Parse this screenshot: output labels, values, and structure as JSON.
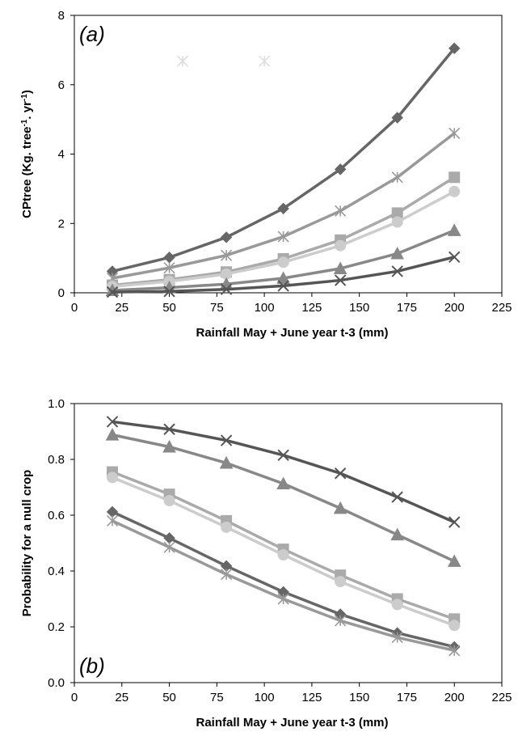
{
  "chart_data": [
    {
      "type": "line",
      "panel_label": "(a)",
      "xlabel": "Rainfall May + June year t-3 (mm)",
      "ylabel_parts": [
        "CPtree (Kg. tree",
        "-1",
        ". yr",
        "-1",
        ")"
      ],
      "xlim": [
        0,
        225
      ],
      "ylim": [
        0,
        8
      ],
      "xticks": [
        0,
        25,
        50,
        75,
        100,
        125,
        150,
        175,
        200,
        225
      ],
      "yticks": [
        0,
        2,
        4,
        6,
        8
      ],
      "x": [
        20,
        50,
        80,
        110,
        140,
        170,
        200
      ],
      "series": [
        {
          "marker": "diamond",
          "color": "#666666",
          "values": [
            0.62,
            1.02,
            1.6,
            2.43,
            3.56,
            5.05,
            7.05
          ]
        },
        {
          "marker": "asterisk",
          "color": "#999999",
          "values": [
            0.42,
            0.72,
            1.08,
            1.62,
            2.36,
            3.33,
            4.6
          ]
        },
        {
          "marker": "square",
          "color": "#aaaaaa",
          "values": [
            0.22,
            0.38,
            0.6,
            0.98,
            1.52,
            2.3,
            3.33
          ]
        },
        {
          "marker": "circle",
          "color": "#cccccc",
          "values": [
            0.18,
            0.33,
            0.54,
            0.88,
            1.36,
            2.04,
            2.92
          ]
        },
        {
          "marker": "triangle",
          "color": "#888888",
          "values": [
            0.07,
            0.15,
            0.25,
            0.42,
            0.7,
            1.13,
            1.8
          ]
        },
        {
          "marker": "cross",
          "color": "#555555",
          "values": [
            0.02,
            0.04,
            0.1,
            0.2,
            0.36,
            0.62,
            1.03
          ]
        }
      ],
      "extra_points": [
        {
          "x": 57,
          "y": 6.68,
          "marker": "asterisk",
          "color": "#dddddd"
        },
        {
          "x": 100,
          "y": 6.68,
          "marker": "asterisk",
          "color": "#dddddd"
        }
      ]
    },
    {
      "type": "line",
      "panel_label": "(b)",
      "xlabel": "Rainfall May + June year t-3 (mm)",
      "ylabel": "Probability for a null crop",
      "xlim": [
        0,
        225
      ],
      "ylim": [
        0,
        1
      ],
      "xticks": [
        0,
        25,
        50,
        75,
        100,
        125,
        150,
        175,
        200,
        225
      ],
      "yticks": [
        "0.0",
        "0.2",
        "0.4",
        "0.6",
        "0.8",
        "1.0"
      ],
      "x": [
        20,
        50,
        80,
        110,
        140,
        170,
        200
      ],
      "series": [
        {
          "marker": "cross",
          "color": "#555555",
          "values": [
            0.935,
            0.908,
            0.868,
            0.815,
            0.75,
            0.665,
            0.575
          ]
        },
        {
          "marker": "triangle",
          "color": "#888888",
          "values": [
            0.888,
            0.845,
            0.787,
            0.713,
            0.625,
            0.53,
            0.435
          ]
        },
        {
          "marker": "square",
          "color": "#aaaaaa",
          "values": [
            0.755,
            0.675,
            0.58,
            0.478,
            0.385,
            0.3,
            0.228
          ]
        },
        {
          "marker": "circle",
          "color": "#cccccc",
          "values": [
            0.735,
            0.652,
            0.557,
            0.458,
            0.362,
            0.28,
            0.205
          ]
        },
        {
          "marker": "diamond",
          "color": "#666666",
          "values": [
            0.612,
            0.518,
            0.418,
            0.325,
            0.245,
            0.178,
            0.128
          ]
        },
        {
          "marker": "asterisk",
          "color": "#999999",
          "values": [
            0.58,
            0.485,
            0.388,
            0.3,
            0.222,
            0.162,
            0.115
          ]
        }
      ]
    }
  ]
}
